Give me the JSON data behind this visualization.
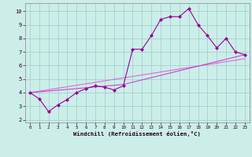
{
  "line1_x": [
    0,
    1,
    2,
    3,
    4,
    5,
    6,
    7,
    8,
    9,
    10,
    11,
    12,
    13,
    14,
    15,
    16,
    17,
    18,
    19,
    20,
    21,
    22,
    23
  ],
  "line1_y": [
    4.0,
    3.55,
    2.6,
    3.1,
    3.5,
    4.0,
    4.3,
    4.5,
    4.4,
    4.2,
    4.5,
    7.2,
    7.2,
    8.2,
    9.4,
    9.6,
    9.6,
    10.2,
    9.0,
    8.2,
    7.3,
    8.0,
    7.0,
    6.8
  ],
  "line2_x": [
    0,
    10,
    23
  ],
  "line2_y": [
    4.0,
    4.6,
    6.8
  ],
  "line3_x": [
    0,
    23
  ],
  "line3_y": [
    4.0,
    6.5
  ],
  "line_color1": "#990099",
  "line_color2": "#cc44cc",
  "line_color3": "#dd66dd",
  "bg_color": "#cceee8",
  "grid_color": "#99cccc",
  "xlabel": "Windchill (Refroidissement éolien,°C)",
  "xlim": [
    -0.5,
    23.5
  ],
  "ylim": [
    1.8,
    10.6
  ],
  "yticks": [
    2,
    3,
    4,
    5,
    6,
    7,
    8,
    9,
    10
  ],
  "xticks": [
    0,
    1,
    2,
    3,
    4,
    5,
    6,
    7,
    8,
    9,
    10,
    11,
    12,
    13,
    14,
    15,
    16,
    17,
    18,
    19,
    20,
    21,
    22,
    23
  ]
}
